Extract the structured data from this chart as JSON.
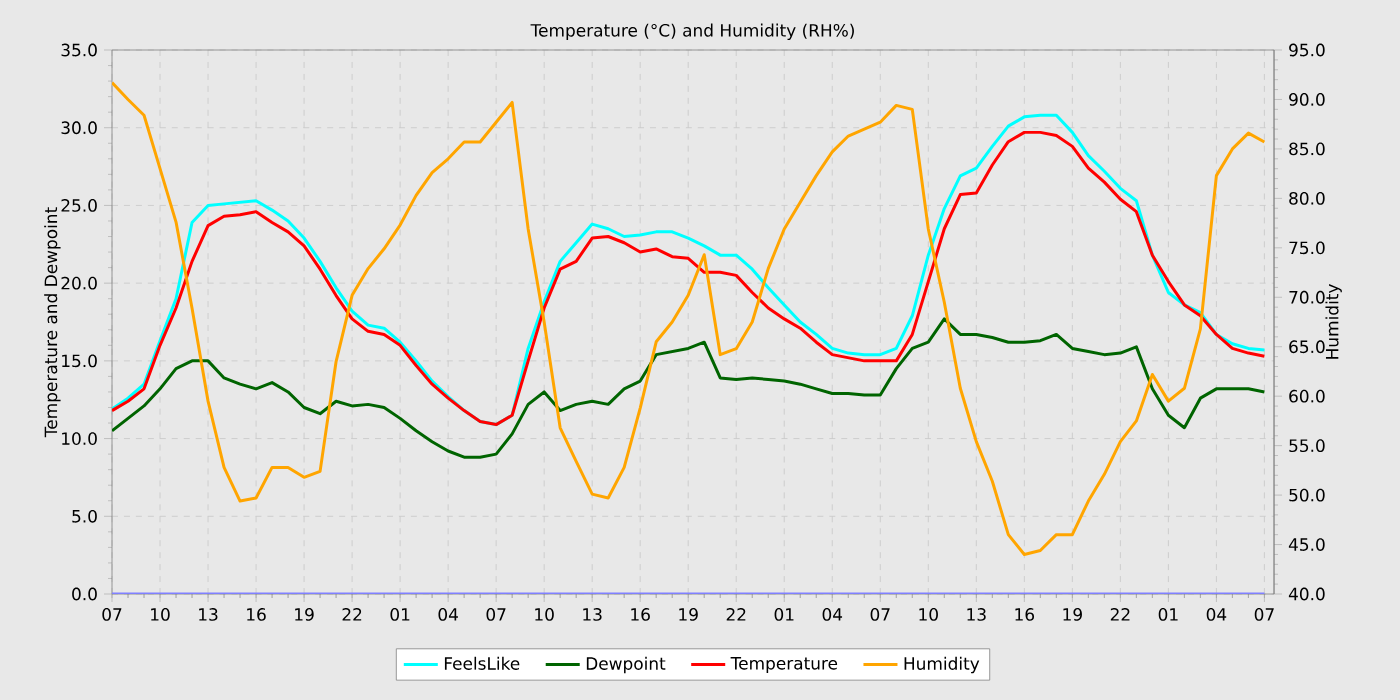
{
  "chart_data": {
    "type": "line",
    "title": "Temperature (°C) and Humidity (RH%)",
    "ylabel": "Temperature and Dewpoint",
    "y2label": "Humidity",
    "categories": [
      "07",
      null,
      null,
      "10",
      null,
      null,
      "13",
      null,
      null,
      "16",
      null,
      null,
      "19",
      null,
      null,
      "22",
      null,
      null,
      "01",
      null,
      null,
      "04",
      null,
      null,
      "07",
      null,
      null,
      "10",
      null,
      null,
      "13",
      null,
      null,
      "16",
      null,
      null,
      "19",
      null,
      null,
      "22",
      null,
      null,
      "01",
      null,
      null,
      "04",
      null,
      null,
      "07",
      null,
      null,
      "10",
      null,
      null,
      "13",
      null,
      null,
      "16",
      null,
      null,
      "19",
      null,
      null,
      "22",
      null,
      null,
      "01",
      null,
      null,
      "04",
      null,
      null,
      "07"
    ],
    "ylim": [
      0,
      35
    ],
    "y2lim": [
      40,
      95
    ],
    "yticks": [
      {
        "value": 0,
        "label": "0.0"
      },
      {
        "value": 5,
        "label": "5.0"
      },
      {
        "value": 10,
        "label": "10.0"
      },
      {
        "value": 15,
        "label": "15.0"
      },
      {
        "value": 20,
        "label": "20.0"
      },
      {
        "value": 25,
        "label": "25.0"
      },
      {
        "value": 30,
        "label": "30.0"
      },
      {
        "value": 35,
        "label": "35.0"
      }
    ],
    "y2ticks": [
      {
        "value": 40,
        "label": "40.0"
      },
      {
        "value": 45,
        "label": "45.0"
      },
      {
        "value": 50,
        "label": "50.0"
      },
      {
        "value": 55,
        "label": "55.0"
      },
      {
        "value": 60,
        "label": "60.0"
      },
      {
        "value": 65,
        "label": "65.0"
      },
      {
        "value": 70,
        "label": "70.0"
      },
      {
        "value": 75,
        "label": "75.0"
      },
      {
        "value": 80,
        "label": "80.0"
      },
      {
        "value": 85,
        "label": "85.0"
      },
      {
        "value": 90,
        "label": "90.0"
      },
      {
        "value": 95,
        "label": "95.0"
      }
    ],
    "grid": true,
    "legend": "bottom",
    "series": [
      {
        "name": "FeelsLike",
        "color": "#00ffff",
        "values": [
          11.9,
          12.6,
          13.5,
          16.3,
          19.0,
          23.9,
          25.0,
          25.1,
          25.2,
          25.3,
          24.7,
          24.0,
          22.9,
          21.4,
          19.7,
          18.2,
          17.3,
          17.1,
          16.2,
          15.0,
          13.7,
          12.7,
          11.8,
          11.1,
          10.9,
          11.5,
          15.8,
          18.8,
          21.4,
          22.6,
          23.8,
          23.5,
          23.0,
          23.1,
          23.3,
          23.3,
          22.9,
          22.4,
          21.8,
          21.8,
          20.9,
          19.7,
          18.6,
          17.5,
          16.7,
          15.8,
          15.5,
          15.4,
          15.4,
          15.8,
          17.9,
          21.8,
          24.8,
          26.9,
          27.4,
          28.8,
          30.1,
          30.7,
          30.8,
          30.8,
          29.7,
          28.2,
          27.2,
          26.1,
          25.3,
          21.8,
          19.4,
          18.6,
          18.1,
          16.7,
          16.1,
          15.8,
          15.7
        ]
      },
      {
        "name": "Dewpoint",
        "color": "#006400",
        "values": [
          10.5,
          11.3,
          12.1,
          13.2,
          14.5,
          15.0,
          15.0,
          13.9,
          13.5,
          13.2,
          13.6,
          13.0,
          12.0,
          11.6,
          12.4,
          12.1,
          12.2,
          12.0,
          11.3,
          10.5,
          9.8,
          9.2,
          8.8,
          8.8,
          9.0,
          10.3,
          12.2,
          13.0,
          11.8,
          12.2,
          12.4,
          12.2,
          13.2,
          13.7,
          15.4,
          15.6,
          15.8,
          16.2,
          13.9,
          13.8,
          13.9,
          13.8,
          13.7,
          13.5,
          13.2,
          12.9,
          12.9,
          12.8,
          12.8,
          14.5,
          15.8,
          16.2,
          17.7,
          16.7,
          16.7,
          16.5,
          16.2,
          16.2,
          16.3,
          16.7,
          15.8,
          15.6,
          15.4,
          15.5,
          15.9,
          13.2,
          11.5,
          10.7,
          12.6,
          13.2,
          13.2,
          13.2,
          13.0
        ]
      },
      {
        "name": "Temperature",
        "color": "#ff0000",
        "values": [
          11.8,
          12.4,
          13.2,
          16.0,
          18.4,
          21.4,
          23.7,
          24.3,
          24.4,
          24.6,
          23.9,
          23.3,
          22.4,
          20.9,
          19.2,
          17.7,
          16.9,
          16.7,
          16.0,
          14.7,
          13.5,
          12.6,
          11.8,
          11.1,
          10.9,
          11.5,
          15.0,
          18.4,
          20.9,
          21.4,
          22.9,
          23.0,
          22.6,
          22.0,
          22.2,
          21.7,
          21.6,
          20.7,
          20.7,
          20.5,
          19.4,
          18.4,
          17.7,
          17.1,
          16.2,
          15.4,
          15.2,
          15.0,
          15.0,
          15.0,
          16.7,
          20.1,
          23.5,
          25.7,
          25.8,
          27.6,
          29.1,
          29.7,
          29.7,
          29.5,
          28.8,
          27.4,
          26.5,
          25.4,
          24.6,
          21.8,
          20.1,
          18.6,
          17.9,
          16.7,
          15.8,
          15.5,
          15.3
        ]
      },
      {
        "name": "Humidity",
        "color": "#ffa500",
        "axis": "y2",
        "values": [
          91.7,
          90.0,
          88.4,
          83.0,
          77.6,
          68.9,
          59.5,
          52.8,
          49.4,
          49.7,
          52.8,
          52.8,
          51.8,
          52.4,
          63.5,
          70.2,
          72.9,
          74.9,
          77.3,
          80.3,
          82.6,
          84.0,
          85.7,
          85.7,
          87.7,
          89.7,
          76.9,
          67.5,
          56.8,
          53.4,
          50.1,
          49.7,
          52.8,
          58.8,
          65.5,
          67.5,
          70.2,
          74.3,
          64.2,
          64.8,
          67.5,
          72.9,
          76.9,
          79.6,
          82.3,
          84.7,
          86.3,
          87.0,
          87.7,
          89.4,
          89.0,
          76.9,
          69.5,
          60.8,
          55.4,
          51.4,
          46.0,
          44.0,
          44.4,
          46.0,
          46.0,
          49.4,
          52.1,
          55.4,
          57.5,
          62.2,
          59.5,
          60.8,
          66.8,
          82.3,
          85.0,
          86.6,
          85.7
        ]
      },
      {
        "color": "#8080ff",
        "values": [
          0,
          0,
          0,
          0,
          0,
          0,
          0,
          0,
          0,
          0,
          0,
          0,
          0,
          0,
          0,
          0,
          0,
          0,
          0,
          0,
          0,
          0,
          0,
          0,
          0,
          0,
          0,
          0,
          0,
          0,
          0,
          0,
          0,
          0,
          0,
          0,
          0,
          0,
          0,
          0,
          0,
          0,
          0,
          0,
          0,
          0,
          0,
          0,
          0,
          0,
          0,
          0,
          0,
          0,
          0,
          0,
          0,
          0,
          0,
          0,
          0,
          0,
          0,
          0,
          0,
          0,
          0,
          0,
          0,
          0,
          0,
          0,
          0
        ]
      }
    ]
  }
}
